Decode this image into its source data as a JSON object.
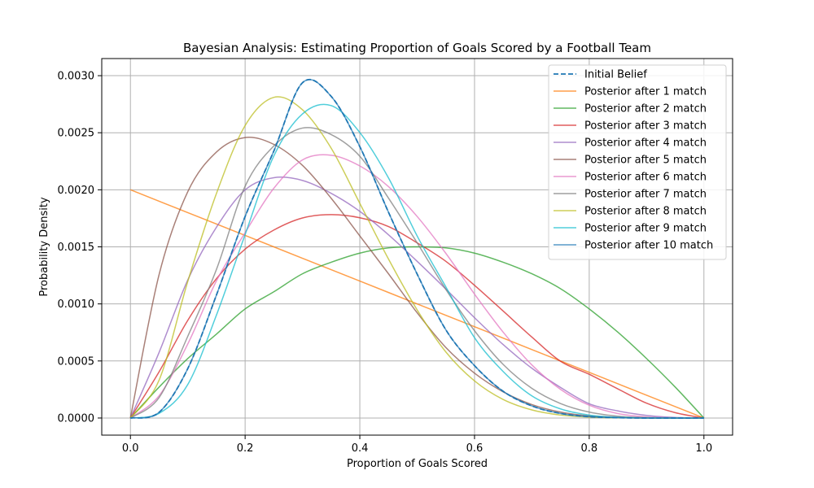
{
  "chart_data": {
    "type": "line",
    "title": "Bayesian Analysis: Estimating Proportion of Goals Scored by a Football Team",
    "xlabel": "Proportion of Goals Scored",
    "ylabel": "Probability Density",
    "xlim": [
      -0.05,
      1.05
    ],
    "ylim": [
      -0.00015,
      0.00315
    ],
    "xticks": [
      0.0,
      0.2,
      0.4,
      0.6,
      0.8,
      1.0
    ],
    "xtick_labels": [
      "0.0",
      "0.2",
      "0.4",
      "0.6",
      "0.8",
      "1.0"
    ],
    "yticks": [
      0.0,
      0.0005,
      0.001,
      0.0015,
      0.002,
      0.0025,
      0.003
    ],
    "ytick_labels": [
      "0.0000",
      "0.0005",
      "0.0010",
      "0.0015",
      "0.0020",
      "0.0025",
      "0.0030"
    ],
    "grid": true,
    "legend_position": "top-right",
    "series": [
      {
        "name": "Initial Belief",
        "color": "#1f77b4",
        "dashed": true,
        "x": [
          0,
          0.05,
          0.1,
          0.15,
          0.2,
          0.25,
          0.3,
          0.35,
          0.4,
          0.45,
          0.5,
          0.55,
          0.6,
          0.65,
          0.7,
          0.75,
          0.8,
          0.85,
          0.9,
          0.95,
          1
        ],
        "y": [
          0,
          5e-05,
          0.000433,
          0.001078,
          0.001766,
          0.002339,
          0.002938,
          0.002819,
          0.002378,
          0.001803,
          0.001261,
          0.000773,
          0.000459,
          0.000234,
          0.000106,
          4e-05,
          1.2e-05,
          3e-06,
          0,
          0,
          0
        ]
      },
      {
        "name": "Posterior after 1 match",
        "color": "#ff7f0e",
        "x": [
          0,
          0.1,
          0.2,
          0.3,
          0.4,
          0.5,
          0.6,
          0.7,
          0.8,
          0.9,
          1
        ],
        "y": [
          0.002,
          0.0018,
          0.0016,
          0.0014,
          0.0012,
          0.001,
          0.0008,
          0.0006,
          0.0004,
          0.0002,
          0
        ]
      },
      {
        "name": "Posterior after 2 match",
        "color": "#2ca02c",
        "x": [
          0,
          0.05,
          0.1,
          0.15,
          0.2,
          0.25,
          0.3,
          0.35,
          0.4,
          0.45,
          0.5,
          0.55,
          0.6,
          0.65,
          0.7,
          0.75,
          0.8,
          0.85,
          0.9,
          0.95,
          1
        ],
        "y": [
          0,
          0.000271,
          0.000521,
          0.000735,
          0.000956,
          0.001106,
          0.001264,
          0.001365,
          0.001445,
          0.001491,
          0.0015,
          0.001491,
          0.001445,
          0.001365,
          0.001264,
          0.001133,
          0.000956,
          0.000752,
          0.000521,
          0.000271,
          0
        ]
      },
      {
        "name": "Posterior after 3 match",
        "color": "#d62728",
        "x": [
          0,
          0.05,
          0.1,
          0.15,
          0.2,
          0.25,
          0.3,
          0.35,
          0.4,
          0.45,
          0.5,
          0.55,
          0.6,
          0.65,
          0.7,
          0.75,
          0.8,
          0.85,
          0.9,
          0.95,
          1
        ],
        "y": [
          0,
          0.000405,
          0.000856,
          0.001221,
          0.00148,
          0.001647,
          0.001753,
          0.001782,
          0.001755,
          0.001678,
          0.001535,
          0.001373,
          0.001163,
          0.000937,
          0.000709,
          0.000497,
          0.000383,
          0.000255,
          0.00013,
          4.7e-05,
          0
        ]
      },
      {
        "name": "Posterior after 4 match",
        "color": "#9467bd",
        "x": [
          0,
          0.05,
          0.1,
          0.15,
          0.2,
          0.25,
          0.3,
          0.35,
          0.4,
          0.45,
          0.5,
          0.55,
          0.6,
          0.65,
          0.7,
          0.75,
          0.8,
          0.85,
          0.9,
          0.95,
          1
        ],
        "y": [
          0,
          0.000575,
          0.00121,
          0.001672,
          0.001999,
          0.002106,
          0.002082,
          0.001969,
          0.001811,
          0.001606,
          0.001373,
          0.00113,
          0.000879,
          0.000643,
          0.000436,
          0.000268,
          0.000125,
          6.2e-05,
          2.3e-05,
          5e-06,
          0
        ]
      },
      {
        "name": "Posterior after 5 match",
        "color": "#8c564b",
        "x": [
          0,
          0.05,
          0.1,
          0.15,
          0.2,
          0.25,
          0.3,
          0.35,
          0.4,
          0.45,
          0.5,
          0.55,
          0.6,
          0.65,
          0.7,
          0.75,
          0.8,
          0.85,
          0.9,
          0.95,
          1
        ],
        "y": [
          0,
          0.001257,
          0.001983,
          0.002331,
          0.002458,
          0.002398,
          0.002214,
          0.001926,
          0.001596,
          0.001264,
          0.000922,
          0.000618,
          0.000393,
          0.000229,
          0.000118,
          5.2e-05,
          1.8e-05,
          5e-06,
          0,
          0,
          0
        ]
      },
      {
        "name": "Posterior after 6 match",
        "color": "#e377c2",
        "x": [
          0,
          0.05,
          0.1,
          0.15,
          0.2,
          0.25,
          0.3,
          0.35,
          0.4,
          0.45,
          0.5,
          0.55,
          0.6,
          0.65,
          0.7,
          0.75,
          0.8,
          0.85,
          0.9,
          0.95,
          1
        ],
        "y": [
          0,
          0.000195,
          0.000649,
          0.001202,
          0.001625,
          0.002013,
          0.002262,
          0.002303,
          0.002209,
          0.002028,
          0.001766,
          0.001443,
          0.001086,
          0.000752,
          0.000465,
          0.000251,
          0.000112,
          3.9e-05,
          9e-06,
          1e-06,
          0
        ]
      },
      {
        "name": "Posterior after 7 match",
        "color": "#7f7f7f",
        "x": [
          0,
          0.05,
          0.1,
          0.15,
          0.2,
          0.25,
          0.3,
          0.35,
          0.4,
          0.45,
          0.5,
          0.55,
          0.6,
          0.65,
          0.7,
          0.75,
          0.8,
          0.85,
          0.9,
          0.95,
          1
        ],
        "y": [
          0,
          0.000179,
          0.000716,
          0.001302,
          0.002031,
          0.002384,
          0.002541,
          0.002484,
          0.002294,
          0.001927,
          0.001535,
          0.001127,
          0.000765,
          0.000469,
          0.00026,
          0.000127,
          5.2e-05,
          1.6e-05,
          4e-06,
          0,
          0
        ]
      },
      {
        "name": "Posterior after 8 match",
        "color": "#bcbd22",
        "x": [
          0,
          0.05,
          0.1,
          0.15,
          0.2,
          0.25,
          0.3,
          0.35,
          0.4,
          0.45,
          0.5,
          0.55,
          0.6,
          0.65,
          0.7,
          0.75,
          0.8,
          0.85,
          0.9,
          0.95,
          1
        ],
        "y": [
          0,
          0.000332,
          0.001197,
          0.001968,
          0.002563,
          0.00281,
          0.002701,
          0.002365,
          0.001881,
          0.001393,
          0.000947,
          0.000579,
          0.000325,
          0.000162,
          7.1e-05,
          2.6e-05,
          8e-06,
          2e-06,
          0,
          0,
          0
        ]
      },
      {
        "name": "Posterior after 9 match",
        "color": "#17becf",
        "x": [
          0,
          0.05,
          0.1,
          0.15,
          0.2,
          0.25,
          0.3,
          0.35,
          0.4,
          0.45,
          0.5,
          0.55,
          0.6,
          0.65,
          0.7,
          0.75,
          0.8,
          0.85,
          0.9,
          0.95,
          1
        ],
        "y": [
          0,
          4.1e-05,
          0.000294,
          0.000902,
          0.001608,
          0.002296,
          0.002665,
          0.002738,
          0.002502,
          0.002104,
          0.001595,
          0.001149,
          0.000704,
          0.000407,
          0.000194,
          8e-05,
          2.6e-05,
          6e-06,
          1e-06,
          0,
          0
        ]
      },
      {
        "name": "Posterior after 10 match",
        "color": "#1f77b4",
        "x": [
          0,
          0.05,
          0.1,
          0.15,
          0.2,
          0.25,
          0.3,
          0.35,
          0.4,
          0.45,
          0.5,
          0.55,
          0.6,
          0.65,
          0.7,
          0.75,
          0.8,
          0.85,
          0.9,
          0.95,
          1
        ],
        "y": [
          0,
          5e-05,
          0.000433,
          0.001078,
          0.001766,
          0.002339,
          0.002938,
          0.002819,
          0.002378,
          0.001803,
          0.001261,
          0.000773,
          0.000459,
          0.000234,
          0.000106,
          4e-05,
          1.2e-05,
          3e-06,
          0,
          0,
          0
        ]
      }
    ]
  }
}
